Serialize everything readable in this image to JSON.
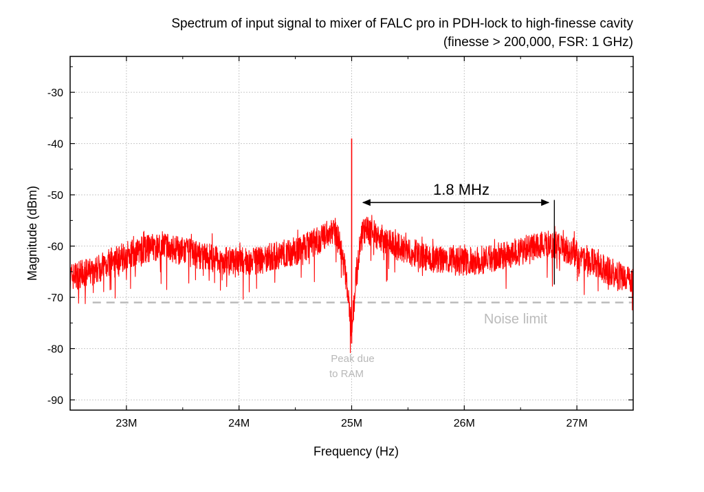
{
  "chart_data": {
    "type": "line",
    "title_line1": "Spectrum of input signal to mixer of FALC pro in PDH-lock to high-finesse cavity",
    "title_line2": "(finesse > 200,000, FSR: 1 GHz)",
    "xlabel": "Frequency (Hz)",
    "ylabel": "Magnitude (dBm)",
    "xlim": [
      22500000,
      27500000
    ],
    "ylim": [
      -92,
      -23
    ],
    "grid": true,
    "x_ticks": [
      23000000,
      24000000,
      25000000,
      26000000,
      27000000
    ],
    "x_tick_labels": [
      "23M",
      "24M",
      "25M",
      "26M",
      "27M"
    ],
    "y_ticks": [
      -30,
      -40,
      -50,
      -60,
      -70,
      -80,
      -90
    ],
    "y_tick_labels": [
      "-30",
      "-40",
      "-50",
      "-60",
      "-70",
      "-80",
      "-90"
    ],
    "series": [
      {
        "color": "#ff0000",
        "x": [
          22500000,
          22700000,
          22900000,
          23100000,
          23300000,
          23500000,
          23700000,
          23900000,
          24100000,
          24300000,
          24500000,
          24700000,
          24850000,
          24900000,
          24950000,
          24980000,
          25000000,
          25020000,
          25050000,
          25100000,
          25150000,
          25300000,
          25500000,
          25700000,
          25900000,
          26100000,
          26300000,
          26500000,
          26700000,
          26850000,
          27000000,
          27200000,
          27400000,
          27500000
        ],
        "y": [
          -66,
          -65,
          -62.5,
          -61,
          -60,
          -61,
          -62,
          -63,
          -63,
          -62,
          -61,
          -59,
          -57,
          -60,
          -66,
          -73,
          -76,
          -71,
          -63,
          -57,
          -57,
          -59,
          -61,
          -62.5,
          -63,
          -63,
          -62,
          -61,
          -59.5,
          -60,
          -61.5,
          -64,
          -66,
          -67
        ]
      }
    ],
    "spike": {
      "x": 25000000,
      "y_top": -39,
      "y_bottom": -79
    },
    "noise_limit": {
      "y": -71,
      "label": "Noise limit",
      "color": "#bbbbbb"
    },
    "annotations": {
      "span_label": "1.8 MHz",
      "span_from": 25100000,
      "span_to": 26750000,
      "span_y": -51.5,
      "marker_x": 26800000,
      "marker_y_top": -51,
      "marker_y_bottom": -67.5,
      "ram_label_line1": "Peak due",
      "ram_label_line2": "to RAM",
      "ram_x": 25000000,
      "ram_y": -81.5
    }
  }
}
